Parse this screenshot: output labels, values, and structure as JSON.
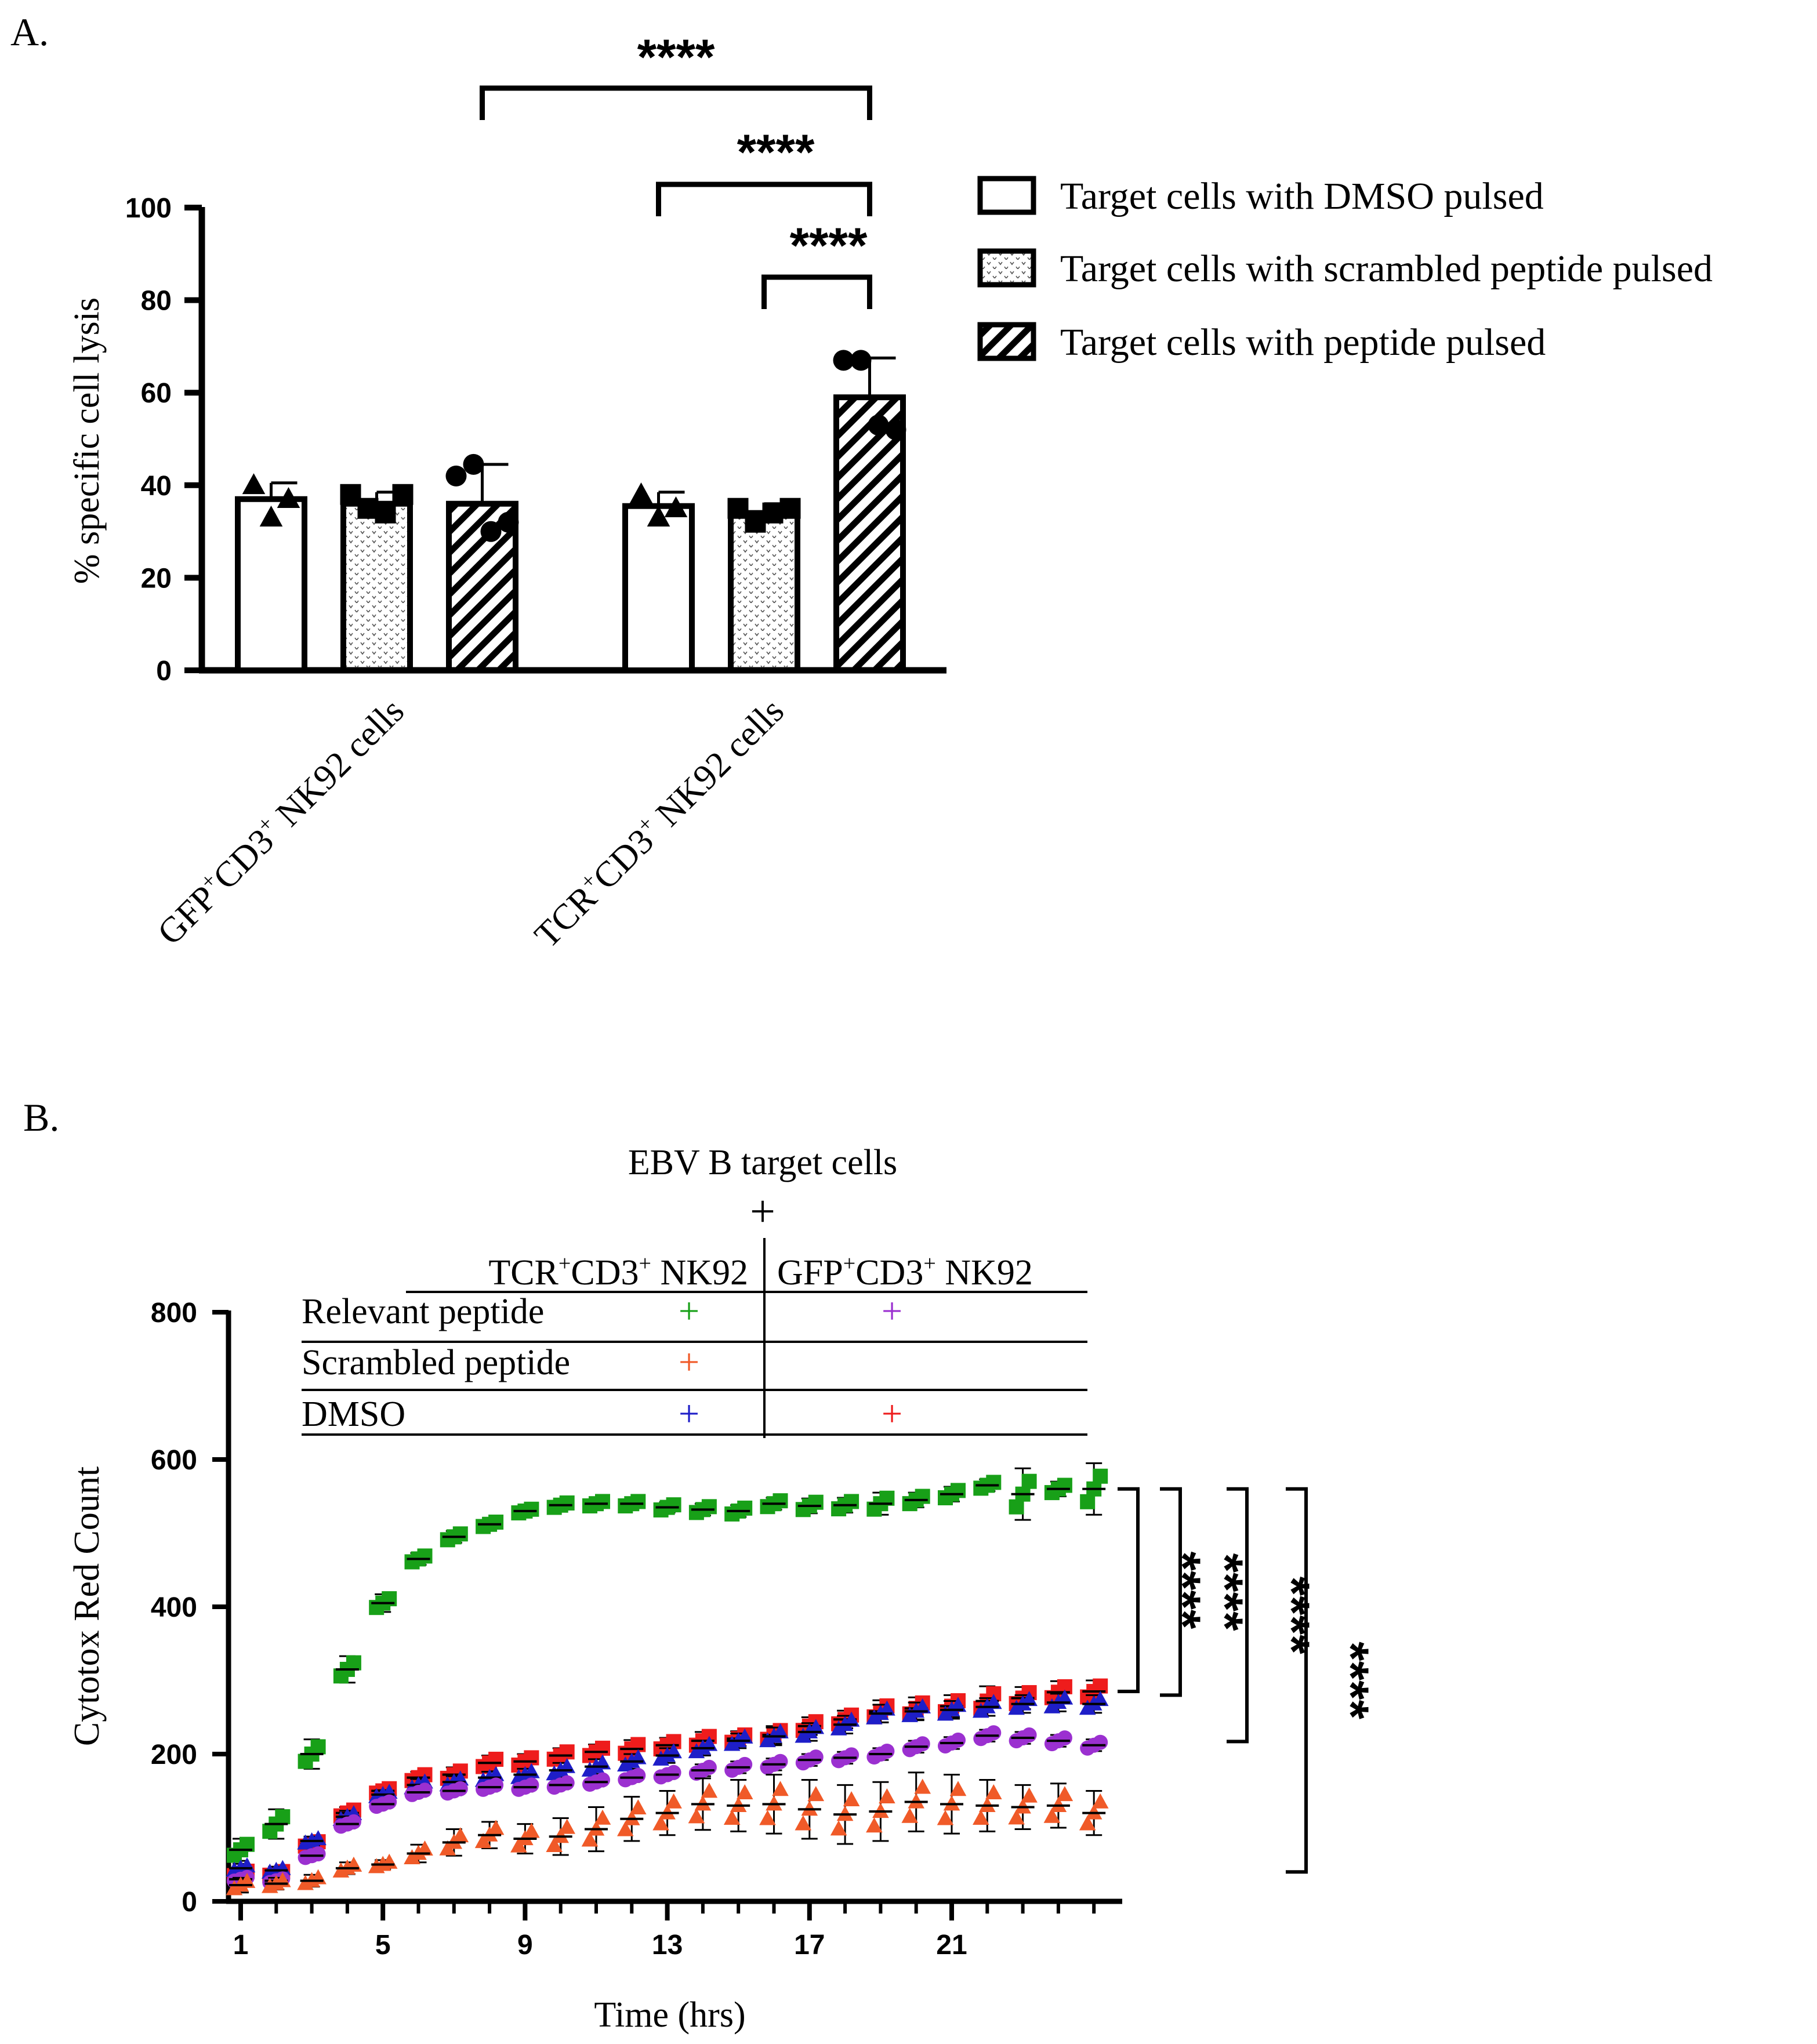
{
  "panel_a_label": "A.",
  "panel_b_label": "B.",
  "chart_data": [
    {
      "type": "bar",
      "panel": "A.",
      "title": "",
      "xlabel": "",
      "ylabel": "% specific cell lysis",
      "ylim": [
        0,
        100
      ],
      "yticks": [
        0,
        20,
        40,
        60,
        80,
        100
      ],
      "categories": [
        {
          "name": "GFP",
          "sup": "+",
          "mid": "CD3",
          "sup2": "+",
          "tail": " NK92 cells"
        },
        {
          "name": "TCR",
          "sup": "+",
          "mid": "CD3",
          "sup2": "+",
          "tail": " NK92 cells"
        }
      ],
      "series": [
        {
          "name": "Target cells with DMSO pulsed",
          "pattern": "open",
          "marker": "triangle",
          "values": [
            37,
            35.5
          ],
          "sd": [
            3.5,
            3
          ],
          "points": [
            [
              40,
              33,
              37
            ],
            [
              38,
              33,
              35
            ]
          ]
        },
        {
          "name": "Target cells with scrambled peptide pulsed",
          "pattern": "dots",
          "marker": "square",
          "values": [
            36,
            34
          ],
          "sd": [
            2.5,
            2
          ],
          "points": [
            [
              38,
              35,
              34,
              38
            ],
            [
              35,
              32,
              34,
              35
            ]
          ]
        },
        {
          "name": "Target cells with peptide pulsed",
          "pattern": "hatch",
          "marker": "circle",
          "values": [
            36,
            59
          ],
          "sd": [
            8.5,
            8.5
          ],
          "points": [
            [
              42,
              44.5,
              30,
              32
            ],
            [
              67,
              67,
              53,
              52
            ]
          ]
        }
      ],
      "significance": [
        {
          "label": "****",
          "from": [
            0,
            2
          ],
          "to": [
            1,
            2
          ]
        },
        {
          "label": "****",
          "from": [
            1,
            0
          ],
          "to": [
            1,
            2
          ]
        },
        {
          "label": "****",
          "from": [
            1,
            1
          ],
          "to": [
            1,
            2
          ]
        }
      ],
      "legend_placement": "right"
    },
    {
      "type": "scatter",
      "panel": "B.",
      "title": "EBV B target cells",
      "plus_sign": "+",
      "xlabel": "Time (hrs)",
      "ylabel": "Cytotox Red Count",
      "xlim": [
        1,
        25
      ],
      "xticks": [
        1,
        5,
        9,
        13,
        17,
        21
      ],
      "ylim": [
        0,
        800
      ],
      "yticks": [
        0,
        200,
        400,
        600,
        800
      ],
      "condition_table": {
        "col_headers": [
          {
            "name": "TCR",
            "sup": "+",
            "mid": "CD3",
            "sup2": "+",
            "tail": " NK92"
          },
          {
            "name": "GFP",
            "sup": "+",
            "mid": "CD3",
            "sup2": "+",
            "tail": " NK92"
          }
        ],
        "rows": [
          {
            "label": "Relevant peptide",
            "cells": [
              "+",
              "+"
            ],
            "colors": [
              "#18a018",
              "#9b30d0"
            ]
          },
          {
            "label": "Scrambled peptide",
            "cells": [
              "+",
              ""
            ],
            "colors": [
              "#f05a28",
              ""
            ]
          },
          {
            "label": "DMSO",
            "cells": [
              "+",
              "+"
            ],
            "colors": [
              "#1e1ec8",
              "#ee1c1c"
            ]
          }
        ]
      },
      "series": [
        {
          "name": "TCR+CD3+ NK92 / Relevant peptide",
          "color": "#18a018",
          "marker": "square",
          "x": [
            1,
            2,
            3,
            4,
            5,
            6,
            7,
            8,
            9,
            10,
            11,
            12,
            13,
            14,
            15,
            16,
            17,
            18,
            19,
            20,
            21,
            22,
            23,
            24,
            25
          ],
          "y": [
            70,
            105,
            200,
            315,
            405,
            465,
            495,
            512,
            530,
            538,
            540,
            540,
            535,
            532,
            530,
            540,
            537,
            538,
            540,
            545,
            553,
            565,
            553,
            560,
            560
          ],
          "sd": [
            15,
            20,
            20,
            18,
            12,
            8,
            8,
            6,
            5,
            6,
            6,
            6,
            7,
            8,
            8,
            8,
            10,
            10,
            15,
            10,
            10,
            8,
            35,
            10,
            35
          ]
        },
        {
          "name": "GFP+CD3+ NK92 / DMSO",
          "color": "#ee1c1c",
          "marker": "square",
          "x": [
            1,
            2,
            3,
            4,
            5,
            6,
            7,
            8,
            9,
            10,
            11,
            12,
            13,
            14,
            15,
            16,
            17,
            18,
            19,
            20,
            21,
            22,
            23,
            24,
            25
          ],
          "y": [
            38,
            38,
            78,
            120,
            150,
            168,
            172,
            188,
            190,
            198,
            203,
            207,
            212,
            218,
            221,
            226,
            238,
            247,
            258,
            262,
            265,
            272,
            276,
            284,
            285
          ],
          "sd": [
            6,
            5,
            6,
            8,
            6,
            8,
            10,
            10,
            10,
            10,
            10,
            12,
            10,
            12,
            10,
            12,
            12,
            12,
            15,
            15,
            15,
            20,
            15,
            15,
            15
          ]
        },
        {
          "name": "TCR+CD3+ NK92 / DMSO",
          "color": "#1e1ec8",
          "marker": "triangle",
          "x": [
            1,
            2,
            3,
            4,
            5,
            6,
            7,
            8,
            9,
            10,
            11,
            12,
            13,
            14,
            15,
            16,
            17,
            18,
            19,
            20,
            21,
            22,
            23,
            24,
            25
          ],
          "y": [
            45,
            42,
            82,
            115,
            145,
            158,
            162,
            168,
            172,
            178,
            183,
            190,
            198,
            208,
            218,
            224,
            230,
            240,
            255,
            258,
            260,
            264,
            268,
            270,
            268
          ],
          "sd": [
            6,
            5,
            6,
            8,
            6,
            8,
            8,
            8,
            8,
            10,
            10,
            10,
            10,
            10,
            10,
            12,
            12,
            12,
            12,
            12,
            12,
            12,
            12,
            12,
            12
          ]
        },
        {
          "name": "GFP+CD3+ NK92 / Relevant peptide",
          "color": "#9b30d0",
          "marker": "circle",
          "x": [
            1,
            2,
            3,
            4,
            5,
            6,
            7,
            8,
            9,
            10,
            11,
            12,
            13,
            14,
            15,
            16,
            17,
            18,
            19,
            20,
            21,
            22,
            23,
            24,
            25
          ],
          "y": [
            30,
            28,
            62,
            105,
            132,
            148,
            150,
            155,
            155,
            158,
            162,
            168,
            172,
            178,
            182,
            186,
            192,
            195,
            200,
            210,
            215,
            225,
            222,
            218,
            212
          ],
          "sd": [
            5,
            5,
            5,
            6,
            6,
            6,
            6,
            6,
            6,
            6,
            6,
            6,
            6,
            8,
            8,
            8,
            8,
            8,
            8,
            8,
            8,
            8,
            8,
            8,
            8
          ]
        },
        {
          "name": "TCR+CD3+ NK92 / Scrambled peptide",
          "color": "#f05a28",
          "marker": "triangle",
          "x": [
            1,
            2,
            3,
            4,
            5,
            6,
            7,
            8,
            9,
            10,
            11,
            12,
            13,
            14,
            15,
            16,
            17,
            18,
            19,
            20,
            21,
            22,
            23,
            24,
            25
          ],
          "y": [
            22,
            24,
            28,
            45,
            50,
            65,
            80,
            90,
            85,
            88,
            98,
            112,
            120,
            132,
            130,
            132,
            125,
            118,
            122,
            135,
            132,
            130,
            128,
            130,
            120
          ],
          "sd": [
            10,
            8,
            8,
            8,
            6,
            12,
            18,
            18,
            20,
            25,
            30,
            30,
            30,
            35,
            35,
            40,
            40,
            40,
            40,
            40,
            40,
            35,
            30,
            30,
            30
          ]
        }
      ],
      "significance": [
        {
          "label": "****",
          "from": "TCR+CD3+ NK92 / Relevant peptide",
          "to": "GFP+CD3+ NK92 / DMSO"
        },
        {
          "label": "****",
          "from": "TCR+CD3+ NK92 / Relevant peptide",
          "to": "TCR+CD3+ NK92 / DMSO"
        },
        {
          "label": "****",
          "from": "TCR+CD3+ NK92 / Relevant peptide",
          "to": "GFP+CD3+ NK92 / Relevant peptide"
        },
        {
          "label": "****",
          "from": "TCR+CD3+ NK92 / Relevant peptide",
          "to": "TCR+CD3+ NK92 / Scrambled peptide"
        }
      ]
    }
  ]
}
